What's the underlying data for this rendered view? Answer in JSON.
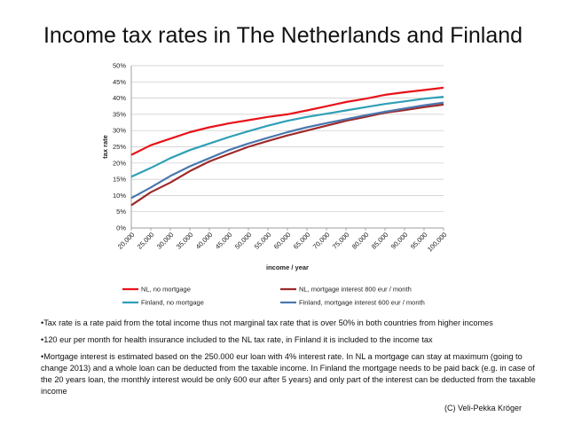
{
  "slide": {
    "title": "Income tax rates in The Netherlands and Finland",
    "notes": [
      "•Tax rate is a rate paid from the total income thus not marginal tax rate that is over 50% in both countries from higher incomes",
      "•120 eur per month for health insurance included to the NL tax rate, in Finland it is included to the income tax",
      "•Mortgage interest is estimated based on the 250.000 eur loan with 4% interest rate. In NL a mortgage can stay at maximum (going to change 2013) and a whole loan can be deducted from the taxable income. In Finland the mortgage needs to be paid back (e.g. in case of the 20 years loan, the monthly interest would be only 600 eur after 5 years) and only part of the interest can be deducted from the taxable income"
    ],
    "credit": "(C) Veli-Pekka Kröger"
  },
  "chart_data": {
    "type": "line",
    "title": "",
    "xlabel": "income / year",
    "ylabel": "tax rate",
    "x": [
      20000,
      25000,
      30000,
      35000,
      40000,
      45000,
      50000,
      55000,
      60000,
      65000,
      70000,
      75000,
      80000,
      85000,
      90000,
      95000,
      100000
    ],
    "x_tick_labels": [
      "20,000",
      "25,000",
      "30,000",
      "35,000",
      "40,000",
      "45,000",
      "50,000",
      "55,000",
      "60,000",
      "65,000",
      "70,000",
      "75,000",
      "80,000",
      "85,000",
      "90,000",
      "95,000",
      "100,000"
    ],
    "ylim": [
      0,
      0.5
    ],
    "y_ticks": [
      0,
      0.05,
      0.1,
      0.15,
      0.2,
      0.25,
      0.3,
      0.35,
      0.4,
      0.45,
      0.5
    ],
    "y_tick_labels": [
      "0%",
      "5%",
      "10%",
      "15%",
      "20%",
      "25%",
      "30%",
      "35%",
      "40%",
      "45%",
      "50%"
    ],
    "grid": "horizontal",
    "legend_position": "bottom",
    "series": [
      {
        "name": "NL, no mortgage",
        "color": "#e8131a",
        "values": [
          0.225,
          0.255,
          0.275,
          0.295,
          0.31,
          0.322,
          0.332,
          0.342,
          0.35,
          0.362,
          0.375,
          0.388,
          0.398,
          0.41,
          0.418,
          0.425,
          0.432
        ]
      },
      {
        "name": "NL,  mortgage interest 800 eur / month",
        "color": "#9e2a2a",
        "values": [
          0.07,
          0.11,
          0.14,
          0.175,
          0.205,
          0.228,
          0.25,
          0.268,
          0.285,
          0.3,
          0.315,
          0.33,
          0.342,
          0.355,
          0.363,
          0.372,
          0.38
        ]
      },
      {
        "name": "Finland, no mortgage",
        "color": "#2f9fb6",
        "values": [
          0.158,
          0.185,
          0.215,
          0.24,
          0.26,
          0.28,
          0.298,
          0.315,
          0.33,
          0.342,
          0.352,
          0.362,
          0.372,
          0.382,
          0.39,
          0.398,
          0.404
        ]
      },
      {
        "name": "Finland, mortgage interest 600 eur / month",
        "color": "#4a78b0",
        "values": [
          0.092,
          0.125,
          0.16,
          0.19,
          0.215,
          0.24,
          0.26,
          0.278,
          0.295,
          0.31,
          0.323,
          0.335,
          0.347,
          0.358,
          0.368,
          0.378,
          0.386
        ]
      }
    ]
  }
}
